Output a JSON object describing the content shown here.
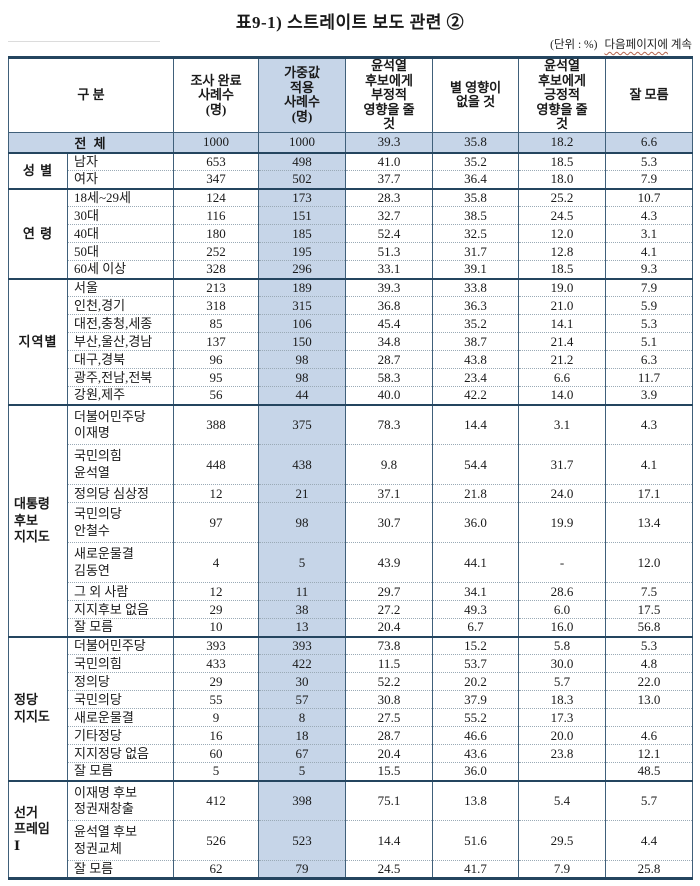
{
  "page": {
    "title": "표9-1) 스트레이트 보도 관련 ②",
    "unit_note": "(단위 : %)",
    "continue_note_wavy": "다음페이지에",
    "continue_note_rest": " 계속"
  },
  "colors": {
    "highlight": "#c6d5e8",
    "border_navy": "#24455f",
    "wavy_underline": "#b4654f"
  },
  "table": {
    "header": {
      "category_label": "구 분",
      "columns": [
        "조사 완료\n사례수\n(명)",
        "가중값\n적용\n사례수\n(명)",
        "윤석열\n후보에게\n부정적\n영향을 줄\n것",
        "별 영향이\n없을 것",
        "윤석열\n후보에게\n긍정적\n영향을 줄\n것",
        "잘 모름"
      ]
    },
    "total": {
      "label": "전 체",
      "values": [
        "1000",
        "1000",
        "39.3",
        "35.8",
        "18.2",
        "6.6"
      ]
    },
    "sections": [
      {
        "group": "성 별",
        "rows": [
          {
            "label": "남자",
            "values": [
              "653",
              "498",
              "41.0",
              "35.2",
              "18.5",
              "5.3"
            ]
          },
          {
            "label": "여자",
            "values": [
              "347",
              "502",
              "37.7",
              "36.4",
              "18.0",
              "7.9"
            ]
          }
        ]
      },
      {
        "group": "연 령",
        "rows": [
          {
            "label": "18세~29세",
            "values": [
              "124",
              "173",
              "28.3",
              "35.8",
              "25.2",
              "10.7"
            ]
          },
          {
            "label": "30대",
            "values": [
              "116",
              "151",
              "32.7",
              "38.5",
              "24.5",
              "4.3"
            ]
          },
          {
            "label": "40대",
            "values": [
              "180",
              "185",
              "52.4",
              "32.5",
              "12.0",
              "3.1"
            ]
          },
          {
            "label": "50대",
            "values": [
              "252",
              "195",
              "51.3",
              "31.7",
              "12.8",
              "4.1"
            ]
          },
          {
            "label": "60세 이상",
            "values": [
              "328",
              "296",
              "33.1",
              "39.1",
              "18.5",
              "9.3"
            ]
          }
        ]
      },
      {
        "group": "지역별",
        "rows": [
          {
            "label": "서울",
            "values": [
              "213",
              "189",
              "39.3",
              "33.8",
              "19.0",
              "7.9"
            ]
          },
          {
            "label": "인천,경기",
            "values": [
              "318",
              "315",
              "36.8",
              "36.3",
              "21.0",
              "5.9"
            ]
          },
          {
            "label": "대전,충청,세종",
            "values": [
              "85",
              "106",
              "45.4",
              "35.2",
              "14.1",
              "5.3"
            ]
          },
          {
            "label": "부산,울산,경남",
            "values": [
              "137",
              "150",
              "34.8",
              "38.7",
              "21.4",
              "5.1"
            ]
          },
          {
            "label": "대구,경북",
            "values": [
              "96",
              "98",
              "28.7",
              "43.8",
              "21.2",
              "6.3"
            ]
          },
          {
            "label": "광주,전남,전북",
            "values": [
              "95",
              "98",
              "58.3",
              "23.4",
              "6.6",
              "11.7"
            ]
          },
          {
            "label": "강원,제주",
            "values": [
              "56",
              "44",
              "40.0",
              "42.2",
              "14.0",
              "3.9"
            ]
          }
        ]
      },
      {
        "group": "대통령\n후보\n지지도",
        "rows": [
          {
            "label": "더불어민주당\n이재명",
            "values": [
              "388",
              "375",
              "78.3",
              "14.4",
              "3.1",
              "4.3"
            ]
          },
          {
            "label": "국민의힘\n윤석열",
            "values": [
              "448",
              "438",
              "9.8",
              "54.4",
              "31.7",
              "4.1"
            ]
          },
          {
            "label": "정의당 심상정",
            "values": [
              "12",
              "21",
              "37.1",
              "21.8",
              "24.0",
              "17.1"
            ]
          },
          {
            "label": "국민의당\n안철수",
            "values": [
              "97",
              "98",
              "30.7",
              "36.0",
              "19.9",
              "13.4"
            ]
          },
          {
            "label": "새로운물결\n김동연",
            "values": [
              "4",
              "5",
              "43.9",
              "44.1",
              "-",
              "12.0"
            ]
          },
          {
            "label": "그 외 사람",
            "values": [
              "12",
              "11",
              "29.7",
              "34.1",
              "28.6",
              "7.5"
            ]
          },
          {
            "label": "지지후보 없음",
            "values": [
              "29",
              "38",
              "27.2",
              "49.3",
              "6.0",
              "17.5"
            ]
          },
          {
            "label": "잘 모름",
            "values": [
              "10",
              "13",
              "20.4",
              "6.7",
              "16.0",
              "56.8"
            ]
          }
        ]
      },
      {
        "group": "정당\n지지도",
        "rows": [
          {
            "label": "더불어민주당",
            "values": [
              "393",
              "393",
              "73.8",
              "15.2",
              "5.8",
              "5.3"
            ]
          },
          {
            "label": "국민의힘",
            "values": [
              "433",
              "422",
              "11.5",
              "53.7",
              "30.0",
              "4.8"
            ]
          },
          {
            "label": "정의당",
            "values": [
              "29",
              "30",
              "52.2",
              "20.2",
              "5.7",
              "22.0"
            ]
          },
          {
            "label": "국민의당",
            "values": [
              "55",
              "57",
              "30.8",
              "37.9",
              "18.3",
              "13.0"
            ]
          },
          {
            "label": "새로운물결",
            "values": [
              "9",
              "8",
              "27.5",
              "55.2",
              "17.3",
              ""
            ]
          },
          {
            "label": "기타정당",
            "values": [
              "16",
              "18",
              "28.7",
              "46.6",
              "20.0",
              "4.6"
            ]
          },
          {
            "label": "지지정당 없음",
            "values": [
              "60",
              "67",
              "20.4",
              "43.6",
              "23.8",
              "12.1"
            ]
          },
          {
            "label": "잘 모름",
            "values": [
              "5",
              "5",
              "15.5",
              "36.0",
              "",
              "48.5"
            ]
          }
        ]
      },
      {
        "group": "선거\n프레임\nⅠ",
        "rows": [
          {
            "label": "이재명 후보\n정권재창출",
            "values": [
              "412",
              "398",
              "75.1",
              "13.8",
              "5.4",
              "5.7"
            ]
          },
          {
            "label": "윤석열 후보\n정권교체",
            "values": [
              "526",
              "523",
              "14.4",
              "51.6",
              "29.5",
              "4.4"
            ]
          },
          {
            "label": "잘 모름",
            "values": [
              "62",
              "79",
              "24.5",
              "41.7",
              "7.9",
              "25.8"
            ]
          }
        ]
      }
    ]
  }
}
